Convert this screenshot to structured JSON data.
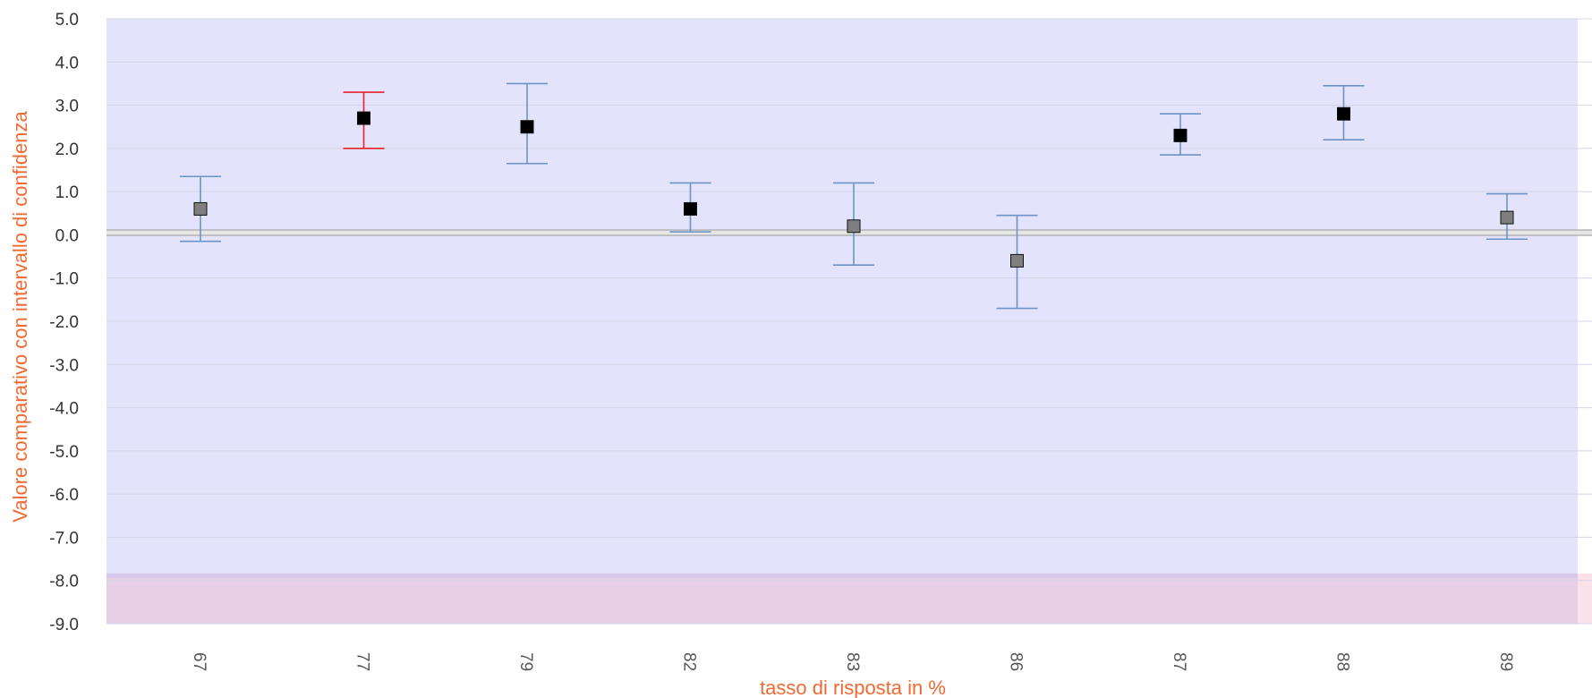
{
  "chart_data": {
    "type": "scatter",
    "subtype": "error-bar",
    "title": "",
    "xlabel": "tasso di risposta in %",
    "ylabel": "Valore comparativo con intervallo di confidenza",
    "ylim": [
      -9.0,
      5.0
    ],
    "yticks": [
      "5.0",
      "4.0",
      "3.0",
      "2.0",
      "1.0",
      "0.0",
      "-1.0",
      "-2.0",
      "-3.0",
      "-4.0",
      "-5.0",
      "-6.0",
      "-7.0",
      "-8.0",
      "-9.0"
    ],
    "grid": true,
    "reference_line": 0.05,
    "bands": [
      {
        "from": -7.9,
        "to": 5.0,
        "color": "#e3e3fb"
      },
      {
        "from": -9.0,
        "to": -7.9,
        "color": "#e7cfe6"
      }
    ],
    "categories": [
      "67",
      "77",
      "79",
      "82",
      "83",
      "86",
      "87",
      "88",
      "89"
    ],
    "points": [
      {
        "x": "67",
        "value": 0.6,
        "low": -0.15,
        "high": 1.35,
        "marker": "gray",
        "highlight": false
      },
      {
        "x": "77",
        "value": 2.7,
        "low": 2.0,
        "high": 3.3,
        "marker": "black",
        "highlight": true
      },
      {
        "x": "79",
        "value": 2.5,
        "low": 1.65,
        "high": 3.5,
        "marker": "black",
        "highlight": false
      },
      {
        "x": "82",
        "value": 0.6,
        "low": 0.07,
        "high": 1.2,
        "marker": "black",
        "highlight": false
      },
      {
        "x": "83",
        "value": 0.2,
        "low": -0.7,
        "high": 1.2,
        "marker": "gray",
        "highlight": false
      },
      {
        "x": "86",
        "value": -0.6,
        "low": -1.7,
        "high": 0.45,
        "marker": "gray",
        "highlight": false
      },
      {
        "x": "87",
        "value": 2.3,
        "low": 1.85,
        "high": 2.8,
        "marker": "black",
        "highlight": false
      },
      {
        "x": "88",
        "value": 2.8,
        "low": 2.2,
        "high": 3.45,
        "marker": "black",
        "highlight": false
      },
      {
        "x": "89",
        "value": 0.4,
        "low": -0.1,
        "high": 0.95,
        "marker": "gray",
        "highlight": false
      }
    ],
    "colors": {
      "errorbar": "#6c93c7",
      "errorbar_highlight": "#e8202a",
      "marker_black": "#000000",
      "marker_gray": "#7f7f7f",
      "tick_highlight": "#e8202a",
      "axis_title": "#ef6a32",
      "gridline": "#d4d4e6",
      "reference_line": "#a8a8a8"
    }
  }
}
